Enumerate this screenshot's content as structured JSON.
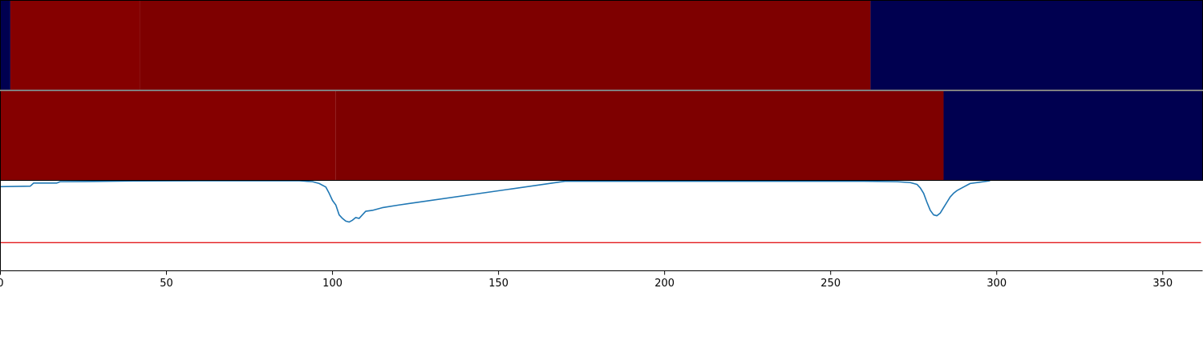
{
  "chart_data": [
    {
      "type": "heatmap",
      "segments": [
        {
          "x_start": 0,
          "x_end": 3,
          "color": "#000050"
        },
        {
          "x_start": 3,
          "x_end": 42,
          "color": "#850000"
        },
        {
          "x_start": 42,
          "x_end": 262,
          "color": "#7e0000"
        },
        {
          "x_start": 262,
          "x_end": 362,
          "color": "#000050"
        }
      ]
    },
    {
      "type": "heatmap",
      "segments": [
        {
          "x_start": 0,
          "x_end": 101,
          "color": "#850000"
        },
        {
          "x_start": 101,
          "x_end": 284,
          "color": "#7e0000"
        },
        {
          "x_start": 284,
          "x_end": 362,
          "color": "#000050"
        }
      ]
    },
    {
      "type": "line",
      "xlim": [
        0,
        362
      ],
      "ylim": [
        0,
        1
      ],
      "xticks": [
        0,
        50,
        100,
        150,
        200,
        250,
        300,
        350
      ],
      "xtick_labels": [
        "0",
        "50",
        "100",
        "150",
        "200",
        "250",
        "300",
        "350"
      ],
      "series": [
        {
          "color": "#1f77b4",
          "x": [
            0,
            9,
            10,
            17,
            18,
            25,
            40,
            60,
            90,
            94,
            96,
            98,
            99,
            100,
            101,
            102,
            103,
            104,
            105,
            106,
            107,
            108,
            110,
            112,
            115,
            120,
            170,
            234,
            260,
            270,
            274,
            276,
            277,
            278,
            279,
            280,
            281,
            282,
            283,
            284,
            285,
            286,
            287,
            288,
            290,
            292,
            295,
            298
          ],
          "y": [
            0.935,
            0.94,
            0.975,
            0.975,
            0.99,
            0.992,
            0.998,
            1.0,
            1.0,
            0.99,
            0.97,
            0.93,
            0.86,
            0.78,
            0.73,
            0.62,
            0.58,
            0.55,
            0.54,
            0.56,
            0.59,
            0.58,
            0.66,
            0.67,
            0.7,
            0.73,
            0.995,
            0.995,
            0.995,
            0.99,
            0.98,
            0.96,
            0.92,
            0.86,
            0.76,
            0.67,
            0.62,
            0.61,
            0.64,
            0.7,
            0.76,
            0.82,
            0.86,
            0.89,
            0.93,
            0.97,
            0.985,
            1.0
          ]
        },
        {
          "color": "#e31a1c",
          "x": [
            0,
            361.5
          ],
          "y": [
            0.31,
            0.31
          ]
        }
      ]
    }
  ]
}
